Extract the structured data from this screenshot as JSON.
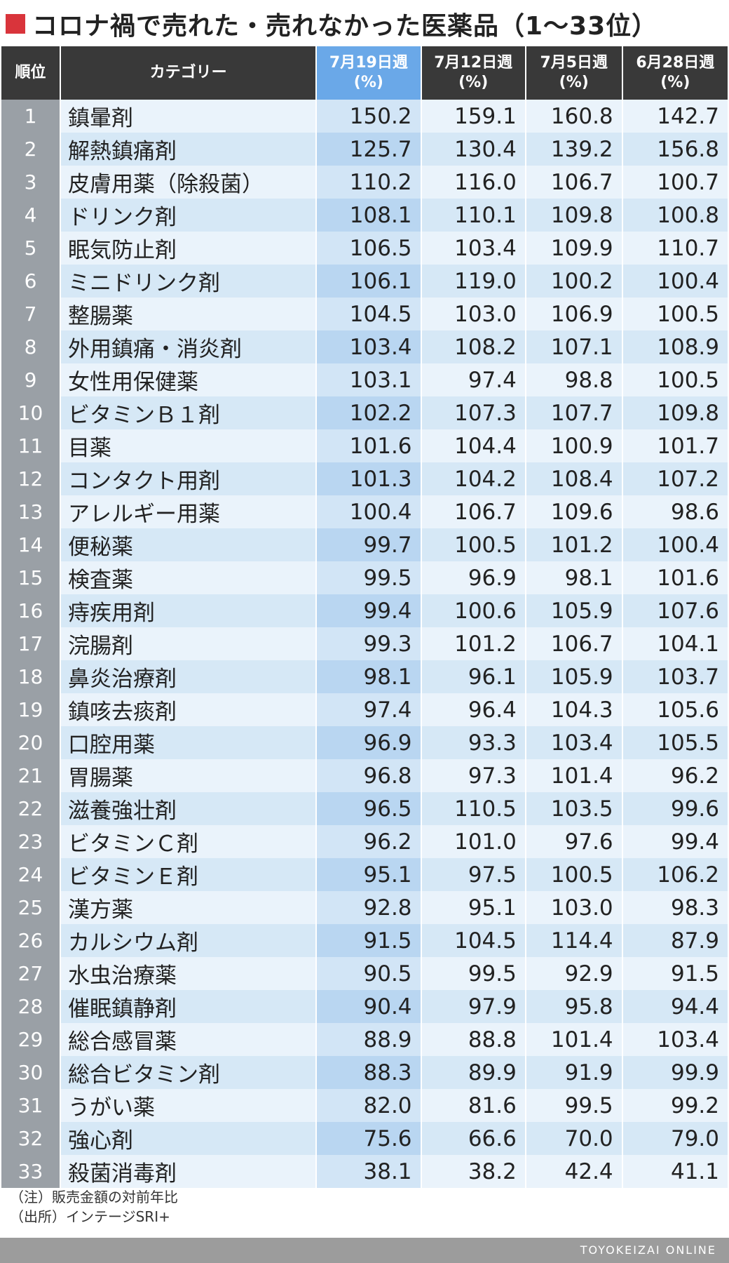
{
  "title": "コロナ禍で売れた・売れなかった医薬品（1〜33位）",
  "accent_color": "#d9343b",
  "highlight_column_color": "#6aa8e8",
  "header": {
    "rank": "順位",
    "category": "カテゴリー",
    "weeks": [
      {
        "label": "7月19日週",
        "unit": "(%)"
      },
      {
        "label": "7月12日週",
        "unit": "(%)"
      },
      {
        "label": "7月5日週",
        "unit": "(%)"
      },
      {
        "label": "6月28日週",
        "unit": "(%)"
      }
    ]
  },
  "rows": [
    {
      "rank": "1",
      "category": "鎮暈剤",
      "values": [
        "150.2",
        "159.1",
        "160.8",
        "142.7"
      ]
    },
    {
      "rank": "2",
      "category": "解熱鎮痛剤",
      "values": [
        "125.7",
        "130.4",
        "139.2",
        "156.8"
      ]
    },
    {
      "rank": "3",
      "category": "皮膚用薬（除殺菌）",
      "values": [
        "110.2",
        "116.0",
        "106.7",
        "100.7"
      ]
    },
    {
      "rank": "4",
      "category": "ドリンク剤",
      "values": [
        "108.1",
        "110.1",
        "109.8",
        "100.8"
      ]
    },
    {
      "rank": "5",
      "category": "眠気防止剤",
      "values": [
        "106.5",
        "103.4",
        "109.9",
        "110.7"
      ]
    },
    {
      "rank": "6",
      "category": "ミニドリンク剤",
      "values": [
        "106.1",
        "119.0",
        "100.2",
        "100.4"
      ]
    },
    {
      "rank": "7",
      "category": "整腸薬",
      "values": [
        "104.5",
        "103.0",
        "106.9",
        "100.5"
      ]
    },
    {
      "rank": "8",
      "category": "外用鎮痛・消炎剤",
      "values": [
        "103.4",
        "108.2",
        "107.1",
        "108.9"
      ]
    },
    {
      "rank": "9",
      "category": "女性用保健薬",
      "values": [
        "103.1",
        "97.4",
        "98.8",
        "100.5"
      ]
    },
    {
      "rank": "10",
      "category": "ビタミンＢ１剤",
      "values": [
        "102.2",
        "107.3",
        "107.7",
        "109.8"
      ]
    },
    {
      "rank": "11",
      "category": "目薬",
      "values": [
        "101.6",
        "104.4",
        "100.9",
        "101.7"
      ]
    },
    {
      "rank": "12",
      "category": "コンタクト用剤",
      "values": [
        "101.3",
        "104.2",
        "108.4",
        "107.2"
      ]
    },
    {
      "rank": "13",
      "category": "アレルギー用薬",
      "values": [
        "100.4",
        "106.7",
        "109.6",
        "98.6"
      ]
    },
    {
      "rank": "14",
      "category": "便秘薬",
      "values": [
        "99.7",
        "100.5",
        "101.2",
        "100.4"
      ]
    },
    {
      "rank": "15",
      "category": "検査薬",
      "values": [
        "99.5",
        "96.9",
        "98.1",
        "101.6"
      ]
    },
    {
      "rank": "16",
      "category": "痔疾用剤",
      "values": [
        "99.4",
        "100.6",
        "105.9",
        "107.6"
      ]
    },
    {
      "rank": "17",
      "category": "浣腸剤",
      "values": [
        "99.3",
        "101.2",
        "106.7",
        "104.1"
      ]
    },
    {
      "rank": "18",
      "category": "鼻炎治療剤",
      "values": [
        "98.1",
        "96.1",
        "105.9",
        "103.7"
      ]
    },
    {
      "rank": "19",
      "category": "鎮咳去痰剤",
      "values": [
        "97.4",
        "96.4",
        "104.3",
        "105.6"
      ]
    },
    {
      "rank": "20",
      "category": "口腔用薬",
      "values": [
        "96.9",
        "93.3",
        "103.4",
        "105.5"
      ]
    },
    {
      "rank": "21",
      "category": "胃腸薬",
      "values": [
        "96.8",
        "97.3",
        "101.4",
        "96.2"
      ]
    },
    {
      "rank": "22",
      "category": "滋養強壮剤",
      "values": [
        "96.5",
        "110.5",
        "103.5",
        "99.6"
      ]
    },
    {
      "rank": "23",
      "category": "ビタミンＣ剤",
      "values": [
        "96.2",
        "101.0",
        "97.6",
        "99.4"
      ]
    },
    {
      "rank": "24",
      "category": "ビタミンＥ剤",
      "values": [
        "95.1",
        "97.5",
        "100.5",
        "106.2"
      ]
    },
    {
      "rank": "25",
      "category": "漢方薬",
      "values": [
        "92.8",
        "95.1",
        "103.0",
        "98.3"
      ]
    },
    {
      "rank": "26",
      "category": "カルシウム剤",
      "values": [
        "91.5",
        "104.5",
        "114.4",
        "87.9"
      ]
    },
    {
      "rank": "27",
      "category": "水虫治療薬",
      "values": [
        "90.5",
        "99.5",
        "92.9",
        "91.5"
      ]
    },
    {
      "rank": "28",
      "category": "催眠鎮静剤",
      "values": [
        "90.4",
        "97.9",
        "95.8",
        "94.4"
      ]
    },
    {
      "rank": "29",
      "category": "総合感冒薬",
      "values": [
        "88.9",
        "88.8",
        "101.4",
        "103.4"
      ]
    },
    {
      "rank": "30",
      "category": "総合ビタミン剤",
      "values": [
        "88.3",
        "89.9",
        "91.9",
        "99.9"
      ]
    },
    {
      "rank": "31",
      "category": "うがい薬",
      "values": [
        "82.0",
        "81.6",
        "99.5",
        "99.2"
      ]
    },
    {
      "rank": "32",
      "category": "強心剤",
      "values": [
        "75.6",
        "66.6",
        "70.0",
        "79.0"
      ]
    },
    {
      "rank": "33",
      "category": "殺菌消毒剤",
      "values": [
        "38.1",
        "38.2",
        "42.4",
        "41.1"
      ]
    }
  ],
  "notes": {
    "note": "（注）販売金額の対前年比",
    "source": "（出所）インテージSRI+"
  },
  "footer": {
    "brand": "TOYOKEIZAI ONLINE"
  }
}
